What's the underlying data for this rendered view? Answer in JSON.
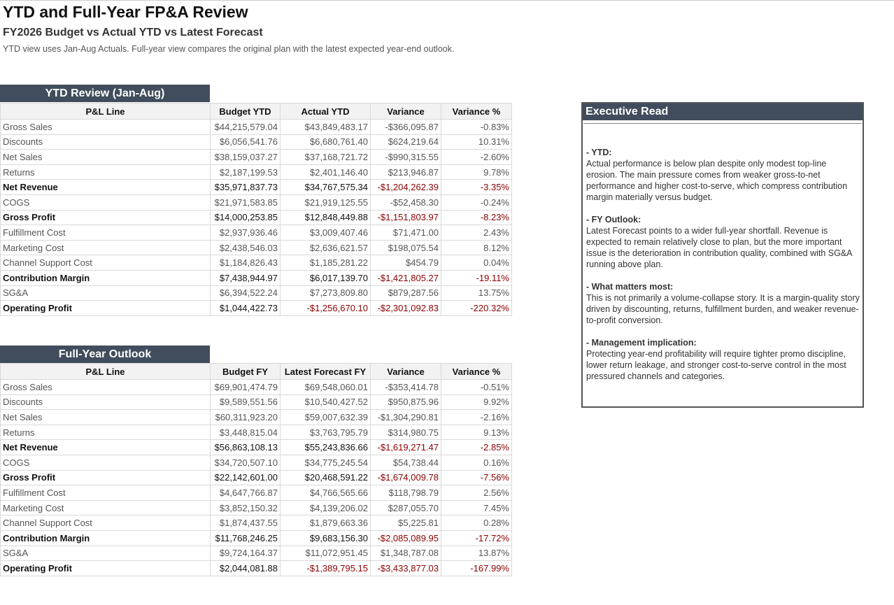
{
  "header": {
    "title": "YTD and Full-Year FP&A Review",
    "subtitle": "FY2026 Budget vs Actual YTD vs Latest Forecast",
    "note": "YTD view uses Jan-Aug Actuals. Full-year view compares the original plan with the latest expected year-end outlook."
  },
  "tables": [
    {
      "title": "YTD Review (Jan-Aug)",
      "columns": [
        "P&L Line",
        "Budget YTD",
        "Actual YTD",
        "Variance",
        "Variance %"
      ],
      "rows": [
        [
          "Gross Sales",
          "$44,215,579.04",
          "$43,849,483.17",
          "-$366,095.87",
          "-0.83%"
        ],
        [
          "Discounts",
          "$6,056,541.76",
          "$6,680,761.40",
          "$624,219.64",
          "10.31%"
        ],
        [
          "Net Sales",
          "$38,159,037.27",
          "$37,168,721.72",
          "-$990,315.55",
          "-2.60%"
        ],
        [
          "Returns",
          "$2,187,199.53",
          "$2,401,146.40",
          "$213,946.87",
          "9.78%"
        ],
        [
          "Net Revenue",
          "$35,971,837.73",
          "$34,767,575.34",
          "-$1,204,262.39",
          "-3.35%"
        ],
        [
          "COGS",
          "$21,971,583.85",
          "$21,919,125.55",
          "-$52,458.30",
          "-0.24%"
        ],
        [
          "Gross Profit",
          "$14,000,253.85",
          "$12,848,449.88",
          "-$1,151,803.97",
          "-8.23%"
        ],
        [
          "Fulfillment Cost",
          "$2,937,936.46",
          "$3,009,407.46",
          "$71,471.00",
          "2.43%"
        ],
        [
          "Marketing Cost",
          "$2,438,546.03",
          "$2,636,621.57",
          "$198,075.54",
          "8.12%"
        ],
        [
          "Channel Support Cost",
          "$1,184,826.43",
          "$1,185,281.22",
          "$454.79",
          "0.04%"
        ],
        [
          "Contribution Margin",
          "$7,438,944.97",
          "$6,017,139.70",
          "-$1,421,805.27",
          "-19.11%"
        ],
        [
          "SG&A",
          "$6,394,522.24",
          "$7,273,809.80",
          "$879,287.56",
          "13.75%"
        ],
        [
          "Operating Profit",
          "$1,044,422.73",
          "-$1,256,670.10",
          "-$2,301,092.83",
          "-220.32%"
        ]
      ]
    },
    {
      "title": "Full-Year Outlook",
      "columns": [
        "P&L Line",
        "Budget FY",
        "Latest Forecast FY",
        "Variance",
        "Variance %"
      ],
      "rows": [
        [
          "Gross Sales",
          "$69,901,474.79",
          "$69,548,060.01",
          "-$353,414.78",
          "-0.51%"
        ],
        [
          "Discounts",
          "$9,589,551.56",
          "$10,540,427.52",
          "$950,875.96",
          "9.92%"
        ],
        [
          "Net Sales",
          "$60,311,923.20",
          "$59,007,632.39",
          "-$1,304,290.81",
          "-2.16%"
        ],
        [
          "Returns",
          "$3,448,815.04",
          "$3,763,795.79",
          "$314,980.75",
          "9.13%"
        ],
        [
          "Net Revenue",
          "$56,863,108.13",
          "$55,243,836.66",
          "-$1,619,271.47",
          "-2.85%"
        ],
        [
          "COGS",
          "$34,720,507.10",
          "$34,775,245.54",
          "$54,738.44",
          "0.16%"
        ],
        [
          "Gross Profit",
          "$22,142,601.00",
          "$20,468,591.22",
          "-$1,674,009.78",
          "-7.56%"
        ],
        [
          "Fulfillment Cost",
          "$4,647,766.87",
          "$4,766,565.66",
          "$118,798.79",
          "2.56%"
        ],
        [
          "Marketing Cost",
          "$3,852,150.32",
          "$4,139,206.02",
          "$287,055.70",
          "7.45%"
        ],
        [
          "Channel Support Cost",
          "$1,874,437.55",
          "$1,879,663.36",
          "$5,225.81",
          "0.28%"
        ],
        [
          "Contribution Margin",
          "$11,768,246.25",
          "$9,683,156.30",
          "-$2,085,089.95",
          "-17.72%"
        ],
        [
          "SG&A",
          "$9,724,164.37",
          "$11,072,951.45",
          "$1,348,787.08",
          "13.87%"
        ],
        [
          "Operating Profit",
          "$2,044,081.88",
          "-$1,389,795.15",
          "-$3,433,877.03",
          "-167.99%"
        ]
      ]
    }
  ],
  "panel": {
    "title": "Executive Read",
    "sections": [
      {
        "label": "- YTD:",
        "text": "Actual performance is below plan despite only modest top-line erosion. The main pressure comes from weaker gross-to-net performance and higher cost-to-serve, which compress contribution margin materially versus budget."
      },
      {
        "label": "- FY Outlook:",
        "text": "Latest Forecast points to a wider full-year shortfall. Revenue is expected to remain relatively close to plan, but the more important issue is the deterioration in contribution quality, combined with SG&A running above plan."
      },
      {
        "label": "- What matters most:",
        "text": "This is not primarily a volume-collapse story. It is a margin-quality story driven by discounting, returns, fulfillment burden, and weaker revenue-to-profit conversion."
      },
      {
        "label": "- Management implication:",
        "text": "Protecting year-end profitability will require tighter promo discipline, lower return leakage, and stronger cost-to-serve control in the most pressured channels and categories."
      }
    ]
  }
}
